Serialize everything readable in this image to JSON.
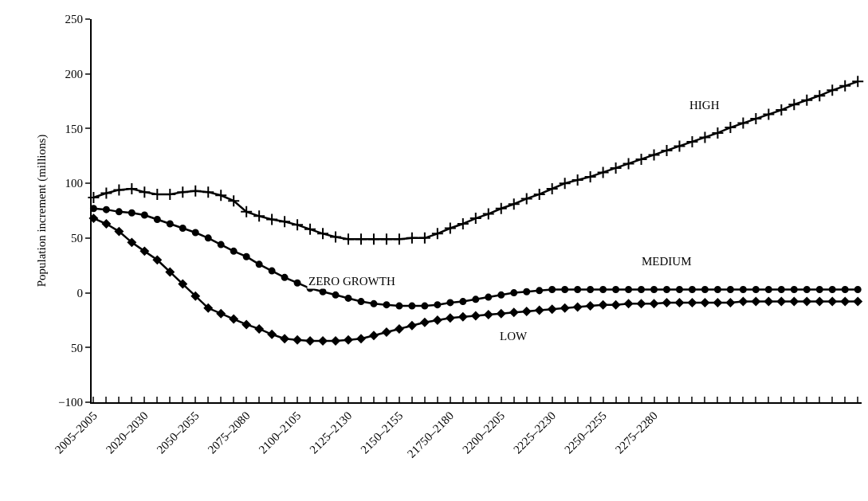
{
  "chart_data": {
    "type": "line",
    "ylabel": "Population increment (millions)",
    "categories": [
      "2005–2005",
      null,
      null,
      null,
      "2020–2030",
      null,
      null,
      null,
      "2050–2055",
      null,
      null,
      null,
      "2075–2080",
      null,
      null,
      null,
      "2100–2105",
      null,
      null,
      null,
      "2125–2130",
      null,
      null,
      null,
      "2150–2155",
      null,
      null,
      null,
      "21750–2180",
      null,
      null,
      null,
      "2200–2205",
      null,
      null,
      null,
      "2225–2230",
      null,
      null,
      null,
      "2250–2255",
      null,
      null,
      null,
      "2275–2280",
      null,
      null,
      null,
      null,
      null,
      null,
      null,
      null,
      null,
      null,
      null,
      null,
      null,
      null,
      null,
      null
    ],
    "series": [
      {
        "name": "HIGH",
        "color": "#000000",
        "marker": "cross",
        "values": [
          87,
          91,
          94,
          95,
          92,
          90,
          90,
          92,
          93,
          92,
          89,
          84,
          74,
          70,
          67,
          65,
          62,
          58,
          54,
          51,
          49,
          49,
          49,
          49,
          49,
          50,
          50,
          54,
          59,
          63,
          68,
          72,
          77,
          81,
          86,
          90,
          95,
          100,
          103,
          106,
          110,
          114,
          118,
          122,
          126,
          130,
          134,
          138,
          142,
          146,
          151,
          155,
          159,
          163,
          167,
          172,
          176,
          180,
          185,
          189,
          193
        ]
      },
      {
        "name": "MEDIUM",
        "color": "#000000",
        "marker": "circle",
        "values": [
          77,
          76,
          74,
          73,
          71,
          67,
          63,
          59,
          55,
          50,
          44,
          38,
          33,
          26,
          20,
          14,
          9,
          4,
          1,
          -2,
          -5,
          -8,
          -10,
          -11,
          -12,
          -12,
          -12,
          -11,
          -9,
          -8,
          -6,
          -4,
          -2,
          0,
          1,
          2,
          3,
          3,
          3,
          3,
          3,
          3,
          3,
          3,
          3,
          3,
          3,
          3,
          3,
          3,
          3,
          3,
          3,
          3,
          3,
          3,
          3,
          3,
          3,
          3,
          3
        ]
      },
      {
        "name": "LOW",
        "color": "#000000",
        "marker": "diamond",
        "values": [
          68,
          63,
          56,
          46,
          38,
          30,
          19,
          8,
          -3,
          -14,
          -19,
          -24,
          -29,
          -33,
          -38,
          -42,
          -43,
          -44,
          -44,
          -44,
          -43,
          -42,
          -39,
          -36,
          -33,
          -30,
          -27,
          -25,
          -23,
          -22,
          -21,
          -20,
          -19,
          -18,
          -17,
          -16,
          -15,
          -14,
          -13,
          -12,
          -11,
          -11,
          -10,
          -10,
          -10,
          -9,
          -9,
          -9,
          -9,
          -9,
          -9,
          -8,
          -8,
          -8,
          -8,
          -8,
          -8,
          -8,
          -8,
          -8,
          -8
        ]
      }
    ],
    "annotations": [
      "ZERO GROWTH"
    ],
    "ylim": [
      -100,
      250
    ],
    "yticks": [
      -100,
      {
        "value": -50,
        "label": "50"
      },
      0,
      50,
      100,
      150,
      200,
      250
    ],
    "grid": false,
    "legend": false,
    "line_style": "solid"
  }
}
